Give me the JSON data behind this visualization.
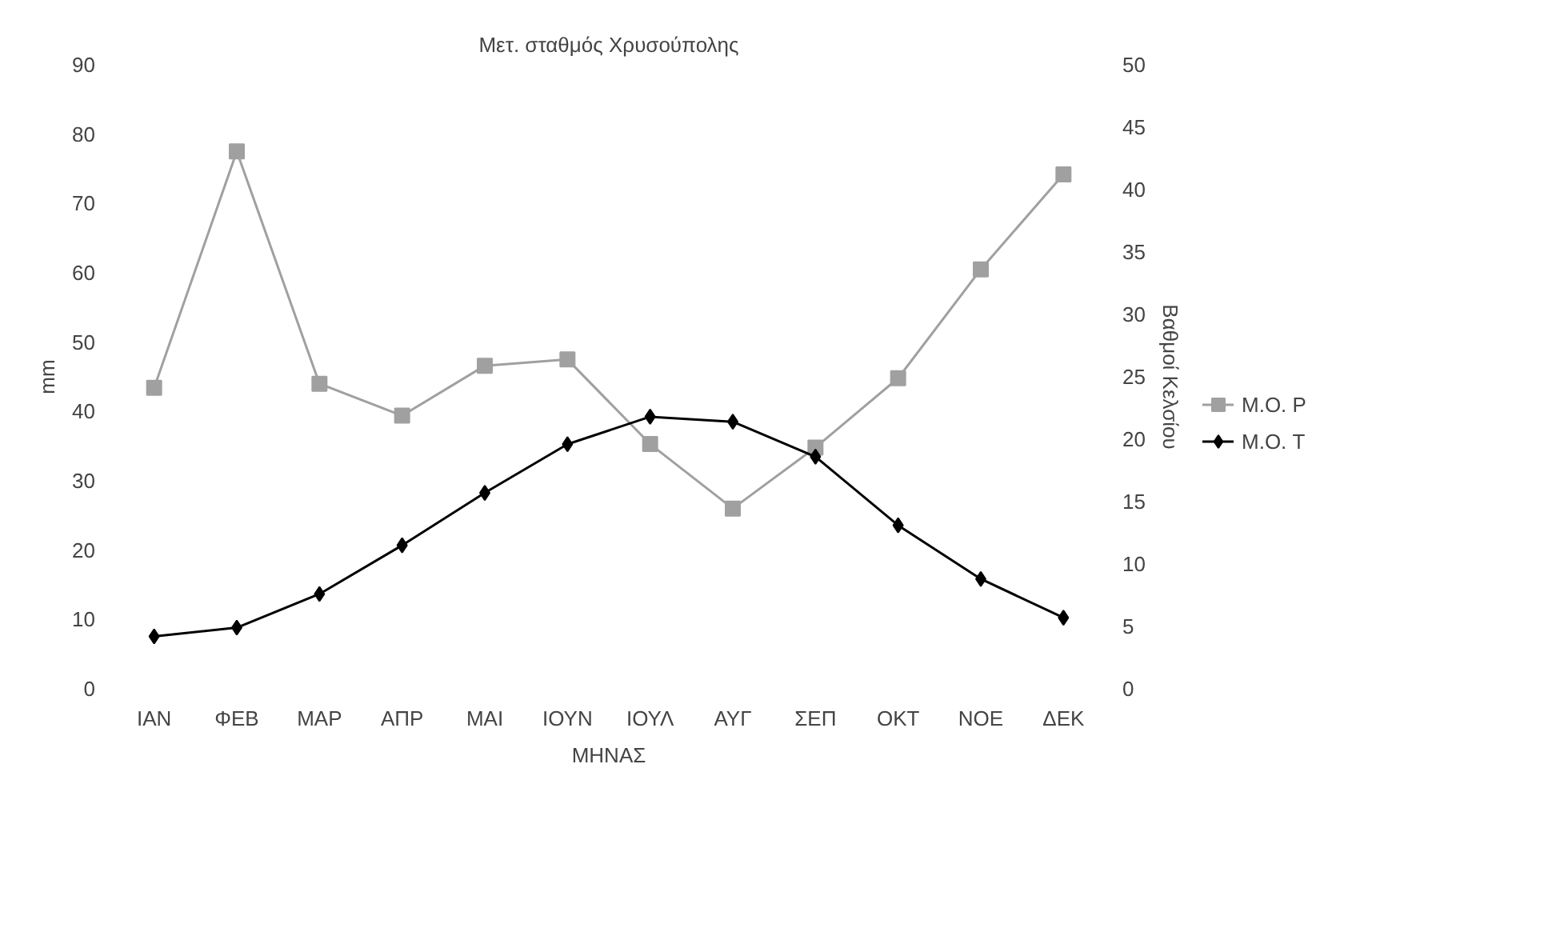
{
  "chart_data": {
    "type": "line",
    "title": "Μετ. σταθμός Χρυσούπολης",
    "xlabel": "ΜΗΝΑΣ",
    "ylabel": "mm",
    "y2label": "Βαθμοί Κελσίου",
    "categories": [
      "ΙΑΝ",
      "ΦΕΒ",
      "ΜΑΡ",
      "ΑΠΡ",
      "ΜΑΙ",
      "ΙΟΥΝ",
      "ΙΟΥΛ",
      "ΑΥΓ",
      "ΣΕΠ",
      "ΟΚΤ",
      "ΝΟΕ",
      "ΔΕΚ"
    ],
    "series": [
      {
        "name": "Μ.Ο. P",
        "color": "#a0a0a0",
        "marker": "square",
        "values": [
          43.4,
          77.5,
          44,
          39.4,
          46.6,
          47.5,
          35.3,
          26,
          34.8,
          44.8,
          60.5,
          74.2
        ]
      },
      {
        "name": "Μ.Ο. T",
        "color": "#000000",
        "marker": "diamond",
        "axis": "y2",
        "values": [
          4.2,
          4.9,
          7.6,
          11.5,
          15.7,
          19.6,
          21.8,
          21.4,
          18.6,
          13.1,
          8.8,
          5.7
        ]
      }
    ],
    "ylim": [
      0,
      90
    ],
    "yticks": [
      0,
      10,
      20,
      30,
      40,
      50,
      60,
      70,
      80,
      90
    ],
    "y2lim": [
      0,
      50
    ],
    "y2ticks": [
      0,
      5,
      10,
      15,
      20,
      25,
      30,
      35,
      40,
      45,
      50
    ],
    "grid": false,
    "legend": "right",
    "line_style": "solid"
  }
}
